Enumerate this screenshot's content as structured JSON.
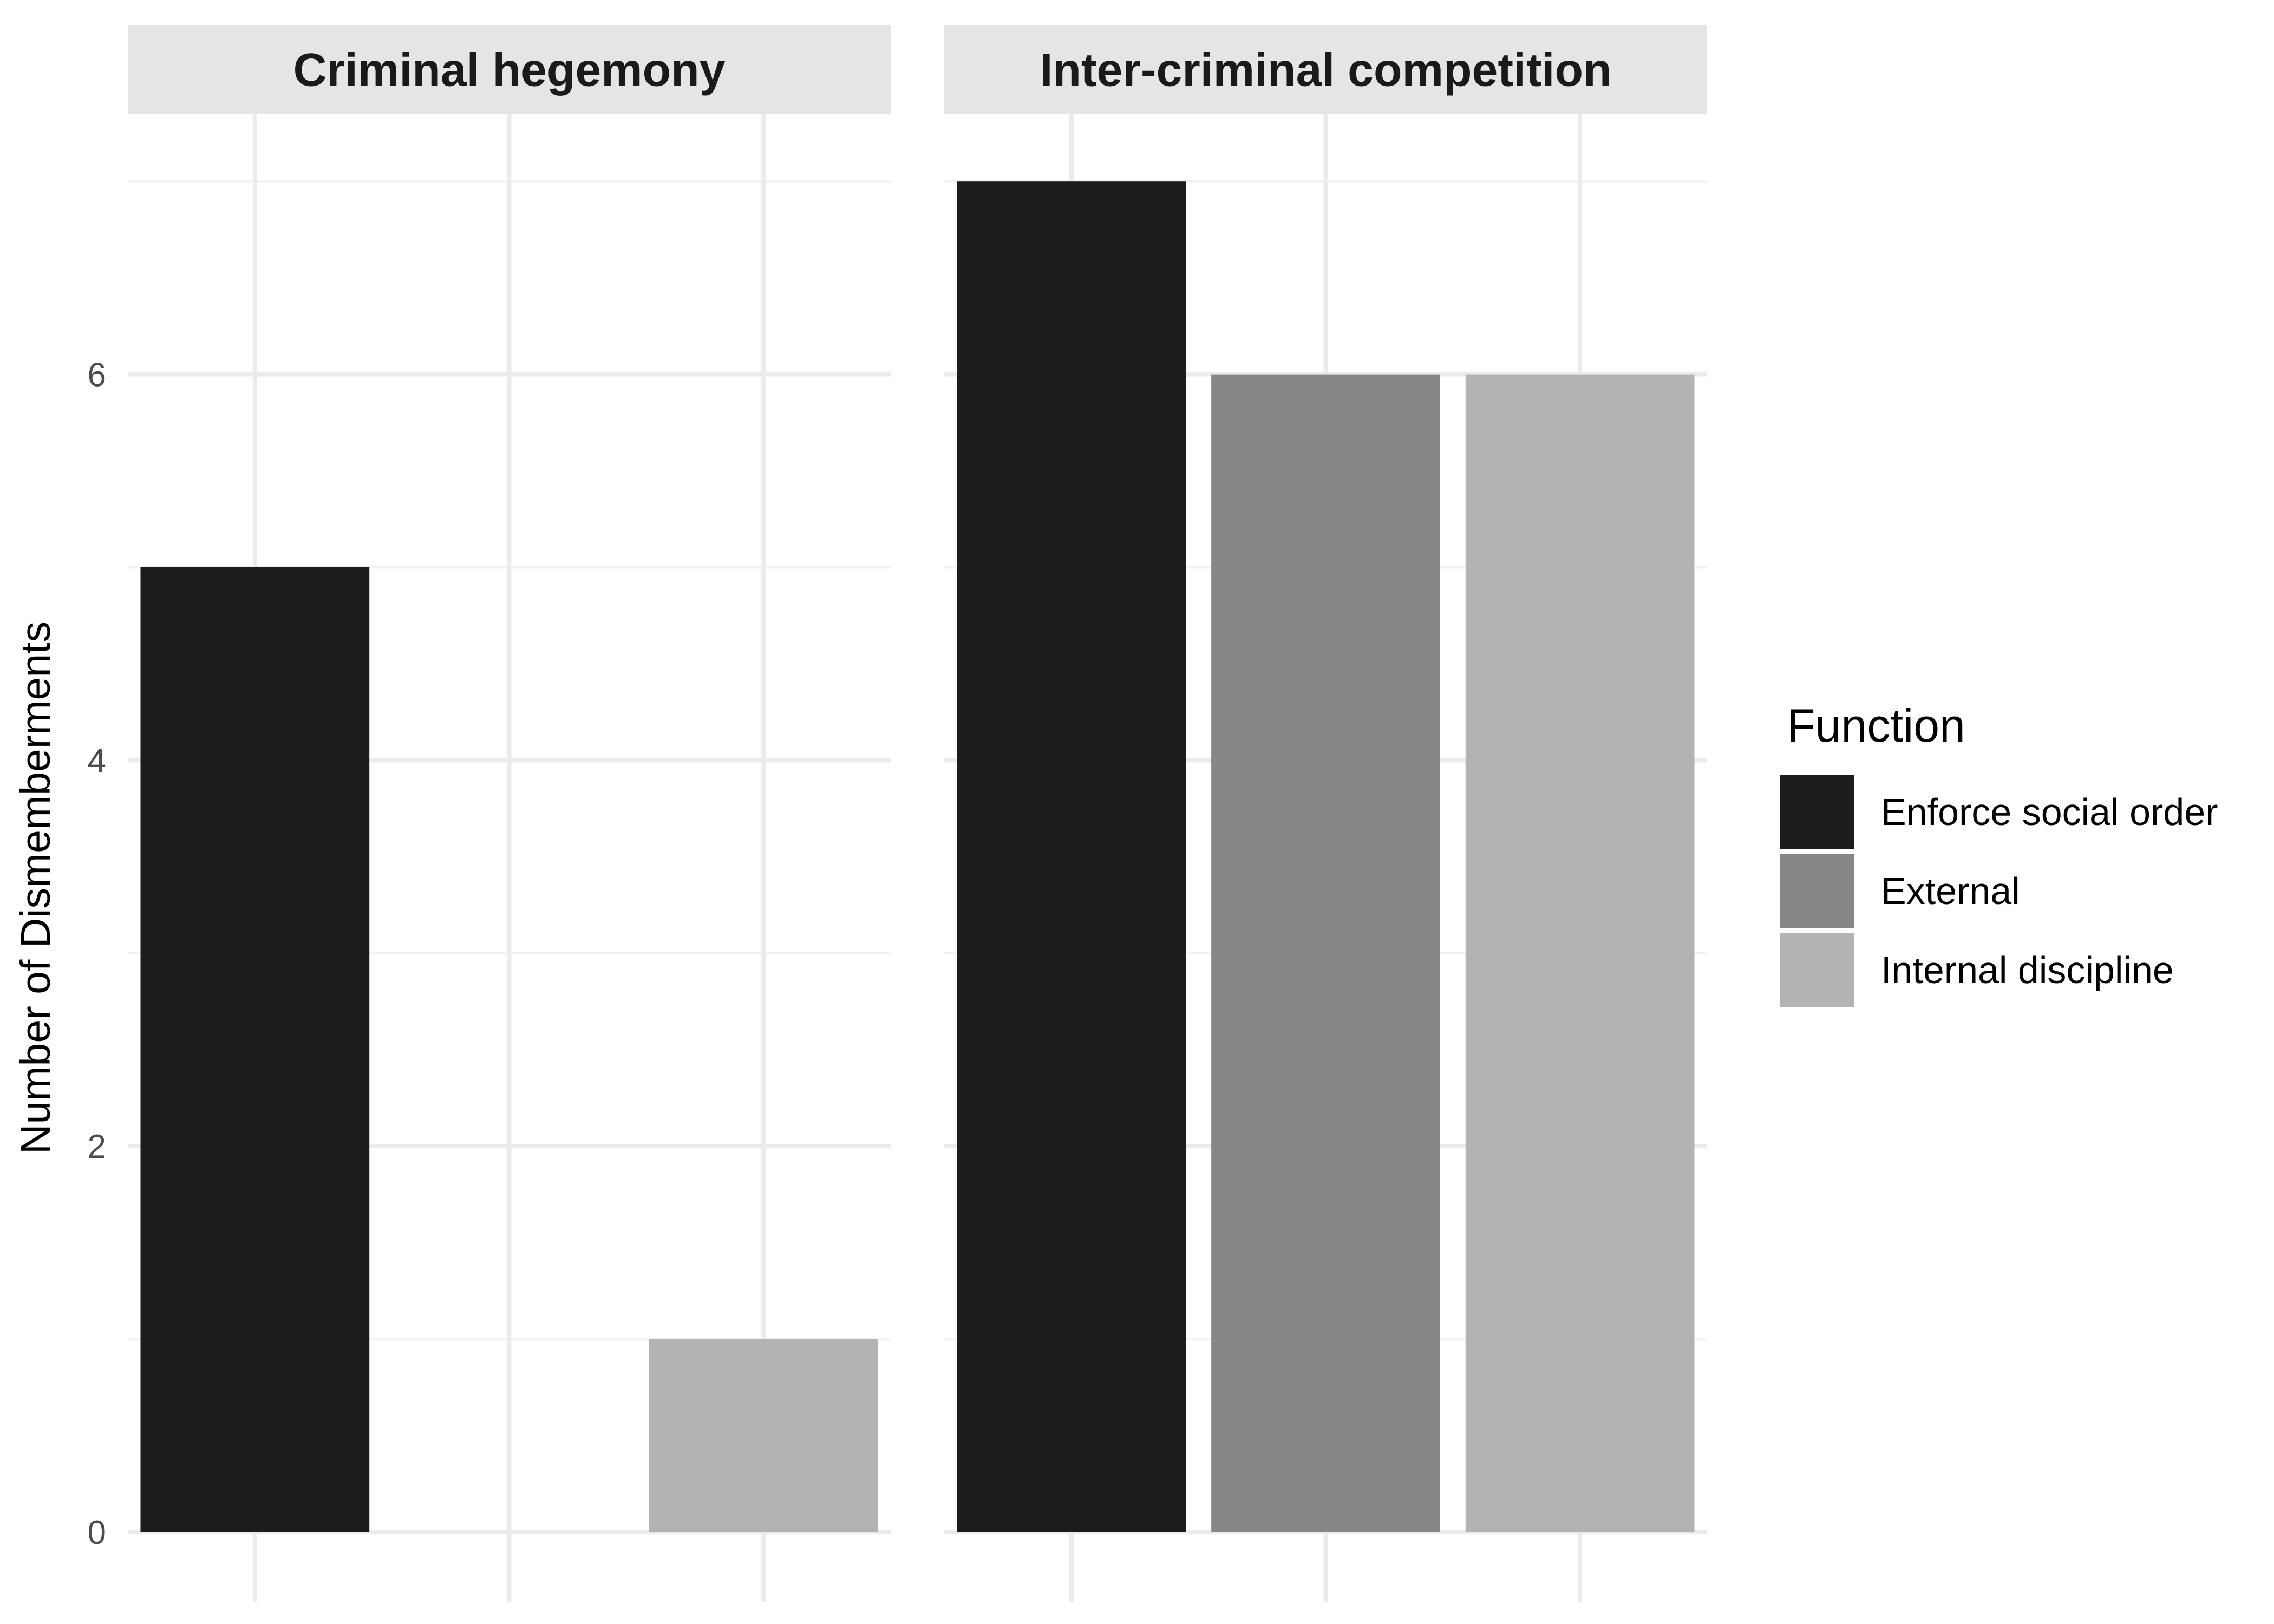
{
  "chart_data": {
    "type": "bar",
    "categories": [
      "Enforce social order",
      "External",
      "Internal discipline"
    ],
    "facets": [
      {
        "label": "Criminal hegemony",
        "values": [
          5,
          0,
          1
        ]
      },
      {
        "label": "Inter-criminal competition",
        "values": [
          7,
          6,
          6
        ]
      }
    ],
    "ylabel": "Number of Dismemberments",
    "xlabel": "",
    "ylim": [
      0,
      7.4
    ],
    "yticks": [
      0,
      2,
      4,
      6
    ],
    "grid": true,
    "legend": {
      "title": "Function",
      "position": "right",
      "entries": [
        "Enforce social order",
        "External",
        "Internal discipline"
      ]
    },
    "colors": [
      "#1c1c1c",
      "#878787",
      "#b3b3b3"
    ]
  }
}
